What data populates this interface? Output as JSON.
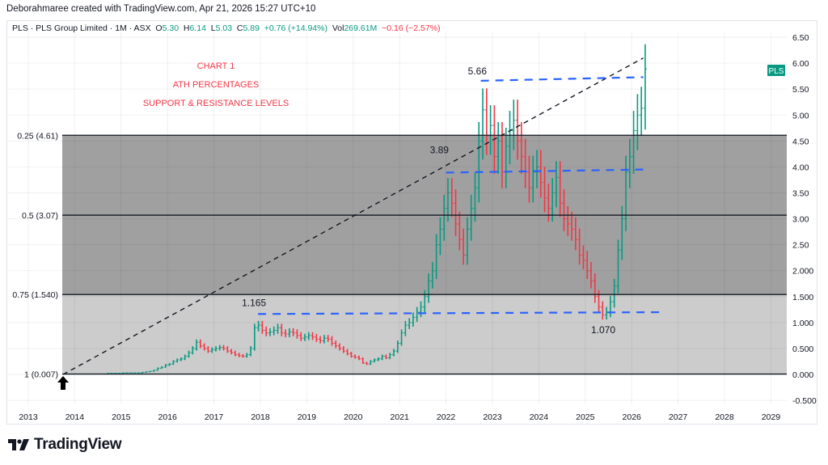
{
  "credit": "Deborahmaree created with TradingView.com, Apr 21, 2026 15:27 UTC+10",
  "legend": {
    "symbol": "PLS · PLS Group Limited · 1M · ASX",
    "o_label": "O",
    "o": "5.30",
    "h_label": "H",
    "h": "6.14",
    "l_label": "L",
    "l": "5.03",
    "c_label": "C",
    "c": "5.89",
    "change": "+0.76 (+14.94%)",
    "vol_label": "Vol",
    "vol": "269.61M",
    "vol_change": "−0.16 (−2.57%)"
  },
  "footer": {
    "brand": "TradingView"
  },
  "colors": {
    "up": "#089981",
    "down": "#f23645",
    "blue_dash": "#2962ff",
    "dark_zone": "#a0a0a0",
    "light_zone": "#cccccc"
  },
  "chart_data": {
    "type": "ohlc",
    "title": "CHART 1",
    "notes": [
      "CHART 1",
      "ATH PERCENTAGES",
      "SUPPORT & RESISTANCE LEVELS"
    ],
    "symbol_badge": "PLS",
    "start_month": "2013-10",
    "closes": [
      0.01,
      0.01,
      0.01,
      0.01,
      0.01,
      0.01,
      0.01,
      0.01,
      0.01,
      0.01,
      0.01,
      0.02,
      0.02,
      0.02,
      0.02,
      0.03,
      0.03,
      0.03,
      0.03,
      0.03,
      0.04,
      0.05,
      0.06,
      0.08,
      0.12,
      0.14,
      0.18,
      0.2,
      0.25,
      0.28,
      0.3,
      0.35,
      0.42,
      0.5,
      0.62,
      0.55,
      0.5,
      0.45,
      0.48,
      0.5,
      0.52,
      0.5,
      0.45,
      0.42,
      0.38,
      0.36,
      0.35,
      0.38,
      0.5,
      0.9,
      0.95,
      0.85,
      0.8,
      0.82,
      0.85,
      0.9,
      0.8,
      0.78,
      0.82,
      0.8,
      0.75,
      0.7,
      0.72,
      0.75,
      0.72,
      0.68,
      0.65,
      0.7,
      0.68,
      0.6,
      0.55,
      0.5,
      0.45,
      0.4,
      0.35,
      0.33,
      0.3,
      0.22,
      0.2,
      0.25,
      0.28,
      0.3,
      0.35,
      0.32,
      0.38,
      0.45,
      0.6,
      0.8,
      0.95,
      1.0,
      1.1,
      1.2,
      1.3,
      1.5,
      1.8,
      2.0,
      2.5,
      2.8,
      3.2,
      3.5,
      3.3,
      2.9,
      2.6,
      2.3,
      2.8,
      3.2,
      3.6,
      4.5,
      5.1,
      4.6,
      4.8,
      4.2,
      4.5,
      3.9,
      4.4,
      4.7,
      4.9,
      4.5,
      4.2,
      3.9,
      3.6,
      3.9,
      4.0,
      3.7,
      3.4,
      3.2,
      3.5,
      3.8,
      3.3,
      3.0,
      2.9,
      2.8,
      2.6,
      2.3,
      2.2,
      2.0,
      1.8,
      1.5,
      1.3,
      1.15,
      1.2,
      1.4,
      1.7,
      2.4,
      3.0,
      3.9,
      4.2,
      4.7,
      5.0,
      5.13,
      5.89
    ],
    "y_ticks": [
      "6.50",
      "6.00",
      "5.50",
      "5.00",
      "4.50",
      "4.00",
      "3.50",
      "3.00",
      "2.50",
      "2.000",
      "1.500",
      "1.000",
      "0.500",
      "0.000",
      "-0.500"
    ],
    "y_tick_values": [
      6.5,
      6,
      5.5,
      5,
      4.5,
      4,
      3.5,
      3,
      2.5,
      2,
      1.5,
      1,
      0.5,
      0,
      -0.5
    ],
    "x_ticks": [
      "2013",
      "2014",
      "2015",
      "2016",
      "2017",
      "2018",
      "2019",
      "2020",
      "2021",
      "2022",
      "2023",
      "2024",
      "2025",
      "2026",
      "2027",
      "2028",
      "2029"
    ],
    "ylim": [
      -0.6,
      6.7
    ],
    "fib_levels": [
      {
        "label": "0.25 (4.61)",
        "value": 4.61
      },
      {
        "label": "0.5 (3.07)",
        "value": 3.07
      },
      {
        "label": "0.75 (1.540)",
        "value": 1.54
      },
      {
        "label": "1 (0.007)",
        "value": 0.007
      }
    ],
    "support_resistance": [
      {
        "label": "5.66",
        "from": [
          2022.75,
          5.66
        ],
        "to": [
          2026.25,
          5.73
        ]
      },
      {
        "label": "3.89",
        "from": [
          2022.0,
          3.89
        ],
        "to": [
          2026.25,
          3.95
        ]
      },
      {
        "label": "1.165",
        "from": [
          2017.95,
          1.165
        ],
        "to": [
          2026.7,
          1.2
        ]
      },
      {
        "label": "1.070",
        "from": null,
        "to": null
      }
    ],
    "trendline": {
      "from": [
        2013.75,
        0.0
      ],
      "to": [
        2026.25,
        6.1
      ]
    }
  }
}
